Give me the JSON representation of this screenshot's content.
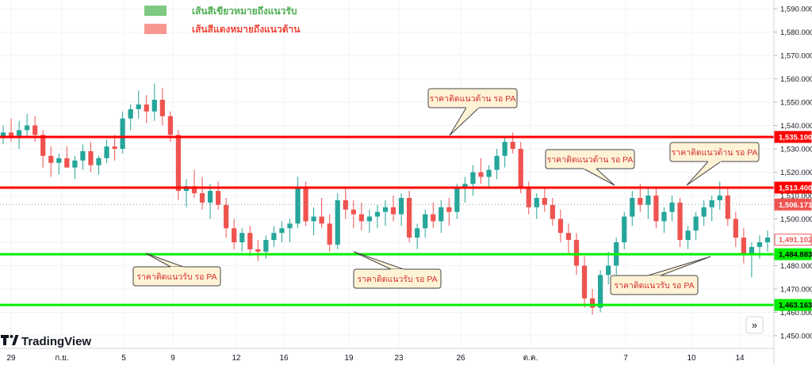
{
  "legend": [
    {
      "label": "เส้นสีเขียวหมายถึงแนวรับ",
      "color": "#7dc982"
    },
    {
      "label": "เส้นสีแดงหมายถึงแนวต้าน",
      "color": "#f7978f"
    }
  ],
  "brand": {
    "name": "TradingView"
  },
  "nav": {
    "scroll_icon": "»"
  },
  "colors": {
    "up": "#26a69a",
    "down": "#ef5350",
    "resistance": "#ff0000",
    "support": "#00ee00",
    "callout_bg": "#fff3d6",
    "callout_text": "#d32f2f"
  },
  "price_axis": {
    "ticks": [
      "1,590.000",
      "1,580.000",
      "1,570.000",
      "1,560.000",
      "1,550.000",
      "1,540.000",
      "1,530.000",
      "1,520.000",
      "1,510.000",
      "1,500.000",
      "1,490.000",
      "1,480.000",
      "1,470.000",
      "1,460.000",
      "1,450.000"
    ]
  },
  "time_axis": {
    "labels": [
      "29",
      "ก.ย.",
      "5",
      "9",
      "12",
      "16",
      "19",
      "23",
      "26",
      "ต.ค.",
      "7",
      "10",
      "14"
    ]
  },
  "callouts": [
    {
      "text": "ราคาติดแนวต้าน รอ PA"
    },
    {
      "text": "ราคาติดแนวต้าน รอ PA"
    },
    {
      "text": "ราคาติดแนวต้าน รอ PA"
    },
    {
      "text": "ราคาติดแนวรับ รอ PA"
    },
    {
      "text": "ราคาติดแนวรับ รอ PA"
    },
    {
      "text": "ราคาติดแนวรับ รอ PA"
    }
  ],
  "chart_data": {
    "type": "candlestick",
    "y_range": [
      1445,
      1595
    ],
    "y_ticks": [
      1590,
      1580,
      1570,
      1560,
      1550,
      1540,
      1530,
      1520,
      1510,
      1500,
      1490,
      1480,
      1470,
      1460,
      1450
    ],
    "x_categories": [
      "29",
      "ก.ย.",
      "5",
      "9",
      "12",
      "16",
      "19",
      "23",
      "26",
      "ต.ค.",
      "7",
      "10",
      "14"
    ],
    "horizontal_levels": [
      {
        "value": 1535.1,
        "label": "1,535.100",
        "kind": "resistance"
      },
      {
        "value": 1513.4,
        "label": "1,513.400",
        "kind": "resistance"
      },
      {
        "value": 1484.883,
        "label": "1,484.883",
        "kind": "support"
      },
      {
        "value": 1463.163,
        "label": "1,463.163",
        "kind": "support"
      }
    ],
    "price_markers": [
      {
        "value": 1506.171,
        "label": "1,506.171",
        "kind": "dark"
      },
      {
        "value": 1491.102,
        "label": "1,491.102",
        "kind": "light"
      }
    ],
    "candles": [
      [
        1535,
        1540,
        1532,
        1537
      ],
      [
        1537,
        1543,
        1533,
        1535
      ],
      [
        1535,
        1542,
        1530,
        1538
      ],
      [
        1538,
        1545,
        1535,
        1540
      ],
      [
        1540,
        1544,
        1533,
        1536
      ],
      [
        1536,
        1538,
        1522,
        1527
      ],
      [
        1527,
        1531,
        1518,
        1524
      ],
      [
        1524,
        1528,
        1519,
        1526
      ],
      [
        1526,
        1531,
        1522,
        1522
      ],
      [
        1522,
        1527,
        1517,
        1525
      ],
      [
        1525,
        1532,
        1521,
        1529
      ],
      [
        1529,
        1533,
        1520,
        1523
      ],
      [
        1523,
        1527,
        1519,
        1526
      ],
      [
        1526,
        1534,
        1524,
        1531
      ],
      [
        1531,
        1536,
        1525,
        1530
      ],
      [
        1530,
        1546,
        1528,
        1543
      ],
      [
        1543,
        1549,
        1538,
        1547
      ],
      [
        1547,
        1555,
        1543,
        1549
      ],
      [
        1549,
        1553,
        1541,
        1546
      ],
      [
        1546,
        1558,
        1542,
        1551
      ],
      [
        1551,
        1556,
        1540,
        1544
      ],
      [
        1544,
        1546,
        1533,
        1536
      ],
      [
        1536,
        1538,
        1508,
        1512
      ],
      [
        1512,
        1517,
        1505,
        1514
      ],
      [
        1514,
        1521,
        1509,
        1511
      ],
      [
        1511,
        1518,
        1504,
        1507
      ],
      [
        1507,
        1515,
        1500,
        1512
      ],
      [
        1512,
        1516,
        1504,
        1506
      ],
      [
        1506,
        1509,
        1492,
        1496
      ],
      [
        1496,
        1500,
        1487,
        1490
      ],
      [
        1490,
        1496,
        1486,
        1494
      ],
      [
        1494,
        1497,
        1484,
        1487
      ],
      [
        1487,
        1491,
        1482,
        1486
      ],
      [
        1486,
        1493,
        1483,
        1491
      ],
      [
        1491,
        1497,
        1488,
        1494
      ],
      [
        1494,
        1499,
        1490,
        1496
      ],
      [
        1496,
        1500,
        1490,
        1498
      ],
      [
        1498,
        1518,
        1496,
        1513
      ],
      [
        1513,
        1516,
        1497,
        1499
      ],
      [
        1499,
        1505,
        1493,
        1501
      ],
      [
        1501,
        1509,
        1496,
        1498
      ],
      [
        1498,
        1502,
        1486,
        1489
      ],
      [
        1489,
        1511,
        1487,
        1508
      ],
      [
        1508,
        1513,
        1500,
        1504
      ],
      [
        1504,
        1508,
        1496,
        1502
      ],
      [
        1502,
        1507,
        1495,
        1499
      ],
      [
        1499,
        1504,
        1494,
        1501
      ],
      [
        1501,
        1506,
        1496,
        1503
      ],
      [
        1503,
        1508,
        1497,
        1505
      ],
      [
        1505,
        1510,
        1499,
        1502
      ],
      [
        1502,
        1511,
        1497,
        1509
      ],
      [
        1509,
        1512,
        1490,
        1492
      ],
      [
        1492,
        1498,
        1487,
        1496
      ],
      [
        1496,
        1504,
        1492,
        1502
      ],
      [
        1502,
        1507,
        1496,
        1499
      ],
      [
        1499,
        1508,
        1494,
        1505
      ],
      [
        1505,
        1509,
        1497,
        1503
      ],
      [
        1503,
        1515,
        1500,
        1513
      ],
      [
        1513,
        1518,
        1507,
        1515
      ],
      [
        1515,
        1523,
        1510,
        1520
      ],
      [
        1520,
        1526,
        1515,
        1518
      ],
      [
        1518,
        1523,
        1513,
        1521
      ],
      [
        1521,
        1530,
        1517,
        1527
      ],
      [
        1527,
        1535,
        1522,
        1533
      ],
      [
        1533,
        1537,
        1528,
        1530
      ],
      [
        1530,
        1533,
        1511,
        1513
      ],
      [
        1513,
        1516,
        1502,
        1505
      ],
      [
        1505,
        1511,
        1500,
        1509
      ],
      [
        1509,
        1513,
        1503,
        1506
      ],
      [
        1506,
        1509,
        1497,
        1500
      ],
      [
        1500,
        1504,
        1490,
        1494
      ],
      [
        1494,
        1498,
        1485,
        1491
      ],
      [
        1491,
        1494,
        1476,
        1480
      ],
      [
        1480,
        1484,
        1462,
        1466
      ],
      [
        1466,
        1470,
        1459,
        1462
      ],
      [
        1462,
        1478,
        1460,
        1476
      ],
      [
        1476,
        1486,
        1472,
        1480
      ],
      [
        1480,
        1492,
        1476,
        1490
      ],
      [
        1490,
        1503,
        1487,
        1501
      ],
      [
        1501,
        1512,
        1497,
        1509
      ],
      [
        1509,
        1515,
        1503,
        1506
      ],
      [
        1506,
        1513,
        1500,
        1510
      ],
      [
        1510,
        1513,
        1496,
        1499
      ],
      [
        1499,
        1505,
        1494,
        1503
      ],
      [
        1503,
        1510,
        1499,
        1507
      ],
      [
        1507,
        1509,
        1488,
        1491
      ],
      [
        1491,
        1497,
        1487,
        1495
      ],
      [
        1495,
        1503,
        1491,
        1501
      ],
      [
        1501,
        1508,
        1497,
        1505
      ],
      [
        1505,
        1510,
        1499,
        1508
      ],
      [
        1508,
        1516,
        1504,
        1510
      ],
      [
        1510,
        1513,
        1497,
        1500
      ],
      [
        1500,
        1503,
        1488,
        1492
      ],
      [
        1492,
        1496,
        1481,
        1485
      ],
      [
        1485,
        1490,
        1475,
        1488
      ],
      [
        1488,
        1493,
        1483,
        1490
      ],
      [
        1490,
        1495,
        1486,
        1492
      ]
    ]
  }
}
